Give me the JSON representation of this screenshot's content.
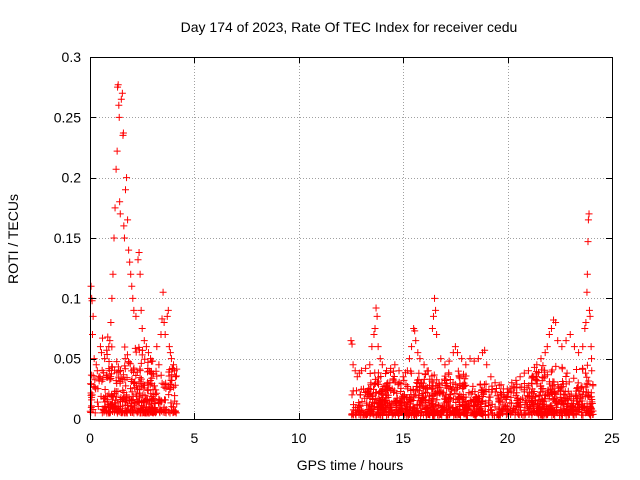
{
  "chart_data": {
    "type": "scatter",
    "title": "Day 174 of 2023, Rate Of TEC Index for receiver cedu",
    "xlabel": "GPS time / hours",
    "ylabel": "ROTI / TECUs",
    "xlim": [
      0,
      25
    ],
    "ylim": [
      0,
      0.3
    ],
    "x_ticks": [
      0,
      5,
      10,
      15,
      20,
      25
    ],
    "y_ticks": [
      0,
      0.05,
      0.1,
      0.15,
      0.2,
      0.25,
      0.3
    ],
    "x_tick_labels": [
      "0",
      "5",
      "10",
      "15",
      "20",
      "25"
    ],
    "y_tick_labels": [
      "0",
      "0.05",
      "0.1",
      "0.15",
      "0.2",
      "0.25",
      "0.3"
    ],
    "grid": true,
    "marker": "+",
    "colors": {
      "points": "#ff0000",
      "grid": "#a0a0a0",
      "axis": "#000000"
    },
    "series": [
      {
        "points": [
          [
            0.05,
            0.11
          ],
          [
            0.08,
            0.1
          ],
          [
            0.1,
            0.098
          ],
          [
            0.12,
            0.07
          ],
          [
            0.15,
            0.085
          ],
          [
            0.2,
            0.05
          ],
          [
            0.3,
            0.045
          ],
          [
            0.35,
            0.04
          ],
          [
            0.5,
            0.06
          ],
          [
            0.55,
            0.055
          ],
          [
            0.6,
            0.067
          ],
          [
            0.7,
            0.05
          ],
          [
            0.8,
            0.057
          ],
          [
            0.85,
            0.068
          ],
          [
            0.9,
            0.06
          ],
          [
            0.95,
            0.065
          ],
          [
            1.0,
            0.08
          ],
          [
            1.05,
            0.1
          ],
          [
            1.1,
            0.12
          ],
          [
            1.15,
            0.15
          ],
          [
            1.2,
            0.175
          ],
          [
            1.25,
            0.207
          ],
          [
            1.3,
            0.222
          ],
          [
            1.32,
            0.275
          ],
          [
            1.35,
            0.277
          ],
          [
            1.38,
            0.26
          ],
          [
            1.4,
            0.25
          ],
          [
            1.42,
            0.18
          ],
          [
            1.45,
            0.17
          ],
          [
            1.5,
            0.265
          ],
          [
            1.55,
            0.27
          ],
          [
            1.58,
            0.235
          ],
          [
            1.6,
            0.237
          ],
          [
            1.62,
            0.16
          ],
          [
            1.65,
            0.15
          ],
          [
            1.7,
            0.19
          ],
          [
            1.75,
            0.2
          ],
          [
            1.8,
            0.165
          ],
          [
            1.85,
            0.14
          ],
          [
            1.9,
            0.13
          ],
          [
            1.95,
            0.12
          ],
          [
            2.0,
            0.11
          ],
          [
            2.05,
            0.1
          ],
          [
            2.1,
            0.09
          ],
          [
            2.2,
            0.085
          ],
          [
            2.3,
            0.132
          ],
          [
            2.35,
            0.138
          ],
          [
            2.4,
            0.12
          ],
          [
            2.45,
            0.09
          ],
          [
            2.5,
            0.075
          ],
          [
            2.6,
            0.065
          ],
          [
            2.7,
            0.06
          ],
          [
            2.8,
            0.055
          ],
          [
            2.9,
            0.05
          ],
          [
            3.0,
            0.048
          ],
          [
            3.2,
            0.06
          ],
          [
            3.3,
            0.045
          ],
          [
            3.4,
            0.07
          ],
          [
            3.45,
            0.083
          ],
          [
            3.5,
            0.105
          ],
          [
            3.55,
            0.08
          ],
          [
            3.6,
            0.07
          ],
          [
            3.7,
            0.085
          ],
          [
            3.75,
            0.09
          ],
          [
            3.8,
            0.06
          ],
          [
            3.85,
            0.055
          ],
          [
            3.9,
            0.05
          ],
          [
            4.0,
            0.045
          ],
          [
            4.05,
            0.04
          ],
          [
            4.1,
            0.035
          ],
          [
            12.5,
            0.065
          ],
          [
            12.55,
            0.062
          ],
          [
            12.6,
            0.045
          ],
          [
            12.7,
            0.04
          ],
          [
            12.8,
            0.035
          ],
          [
            12.9,
            0.038
          ],
          [
            13.0,
            0.04
          ],
          [
            13.2,
            0.042
          ],
          [
            13.4,
            0.045
          ],
          [
            13.5,
            0.06
          ],
          [
            13.6,
            0.07
          ],
          [
            13.65,
            0.075
          ],
          [
            13.7,
            0.092
          ],
          [
            13.75,
            0.085
          ],
          [
            13.8,
            0.06
          ],
          [
            13.9,
            0.05
          ],
          [
            14.0,
            0.045
          ],
          [
            14.2,
            0.04
          ],
          [
            14.4,
            0.042
          ],
          [
            14.6,
            0.045
          ],
          [
            14.8,
            0.04
          ],
          [
            15.0,
            0.035
          ],
          [
            15.2,
            0.04
          ],
          [
            15.3,
            0.05
          ],
          [
            15.4,
            0.06
          ],
          [
            15.5,
            0.075
          ],
          [
            15.55,
            0.073
          ],
          [
            15.6,
            0.065
          ],
          [
            15.7,
            0.055
          ],
          [
            15.8,
            0.05
          ],
          [
            16.0,
            0.045
          ],
          [
            16.2,
            0.04
          ],
          [
            16.4,
            0.075
          ],
          [
            16.45,
            0.085
          ],
          [
            16.5,
            0.1
          ],
          [
            16.55,
            0.09
          ],
          [
            16.6,
            0.07
          ],
          [
            16.8,
            0.05
          ],
          [
            17.0,
            0.045
          ],
          [
            17.2,
            0.048
          ],
          [
            17.4,
            0.055
          ],
          [
            17.5,
            0.06
          ],
          [
            17.6,
            0.055
          ],
          [
            17.8,
            0.05
          ],
          [
            18.0,
            0.045
          ],
          [
            18.2,
            0.05
          ],
          [
            18.4,
            0.048
          ],
          [
            18.6,
            0.05
          ],
          [
            18.8,
            0.055
          ],
          [
            18.9,
            0.057
          ],
          [
            19.0,
            0.045
          ],
          [
            19.2,
            0.035
          ],
          [
            19.4,
            0.03
          ],
          [
            19.6,
            0.028
          ],
          [
            19.8,
            0.025
          ],
          [
            20.0,
            0.022
          ],
          [
            20.2,
            0.03
          ],
          [
            20.4,
            0.032
          ],
          [
            20.6,
            0.035
          ],
          [
            20.8,
            0.038
          ],
          [
            21.0,
            0.04
          ],
          [
            21.2,
            0.035
          ],
          [
            21.4,
            0.045
          ],
          [
            21.6,
            0.05
          ],
          [
            21.8,
            0.055
          ],
          [
            21.9,
            0.06
          ],
          [
            22.0,
            0.07
          ],
          [
            22.1,
            0.075
          ],
          [
            22.2,
            0.082
          ],
          [
            22.3,
            0.08
          ],
          [
            22.4,
            0.065
          ],
          [
            22.6,
            0.06
          ],
          [
            22.8,
            0.065
          ],
          [
            23.0,
            0.07
          ],
          [
            23.2,
            0.06
          ],
          [
            23.4,
            0.055
          ],
          [
            23.6,
            0.06
          ],
          [
            23.7,
            0.075
          ],
          [
            23.75,
            0.08
          ],
          [
            23.8,
            0.105
          ],
          [
            23.82,
            0.12
          ],
          [
            23.85,
            0.147
          ],
          [
            23.87,
            0.165
          ],
          [
            23.9,
            0.17
          ],
          [
            23.92,
            0.09
          ],
          [
            23.95,
            0.085
          ],
          [
            24.0,
            0.06
          ],
          [
            24.02,
            0.05
          ]
        ]
      }
    ],
    "dense_bands": [
      {
        "x_range": [
          0,
          4.2
        ],
        "y_range": [
          0.005,
          0.042
        ]
      },
      {
        "x_range": [
          0.8,
          3.2
        ],
        "y_range": [
          0.005,
          0.06
        ]
      },
      {
        "x_range": [
          12.5,
          24.1
        ],
        "y_range": [
          0.003,
          0.03
        ]
      },
      {
        "x_range": [
          13.3,
          18.7
        ],
        "y_range": [
          0.005,
          0.04
        ]
      },
      {
        "x_range": [
          21.0,
          24.1
        ],
        "y_range": [
          0.005,
          0.045
        ]
      }
    ]
  }
}
